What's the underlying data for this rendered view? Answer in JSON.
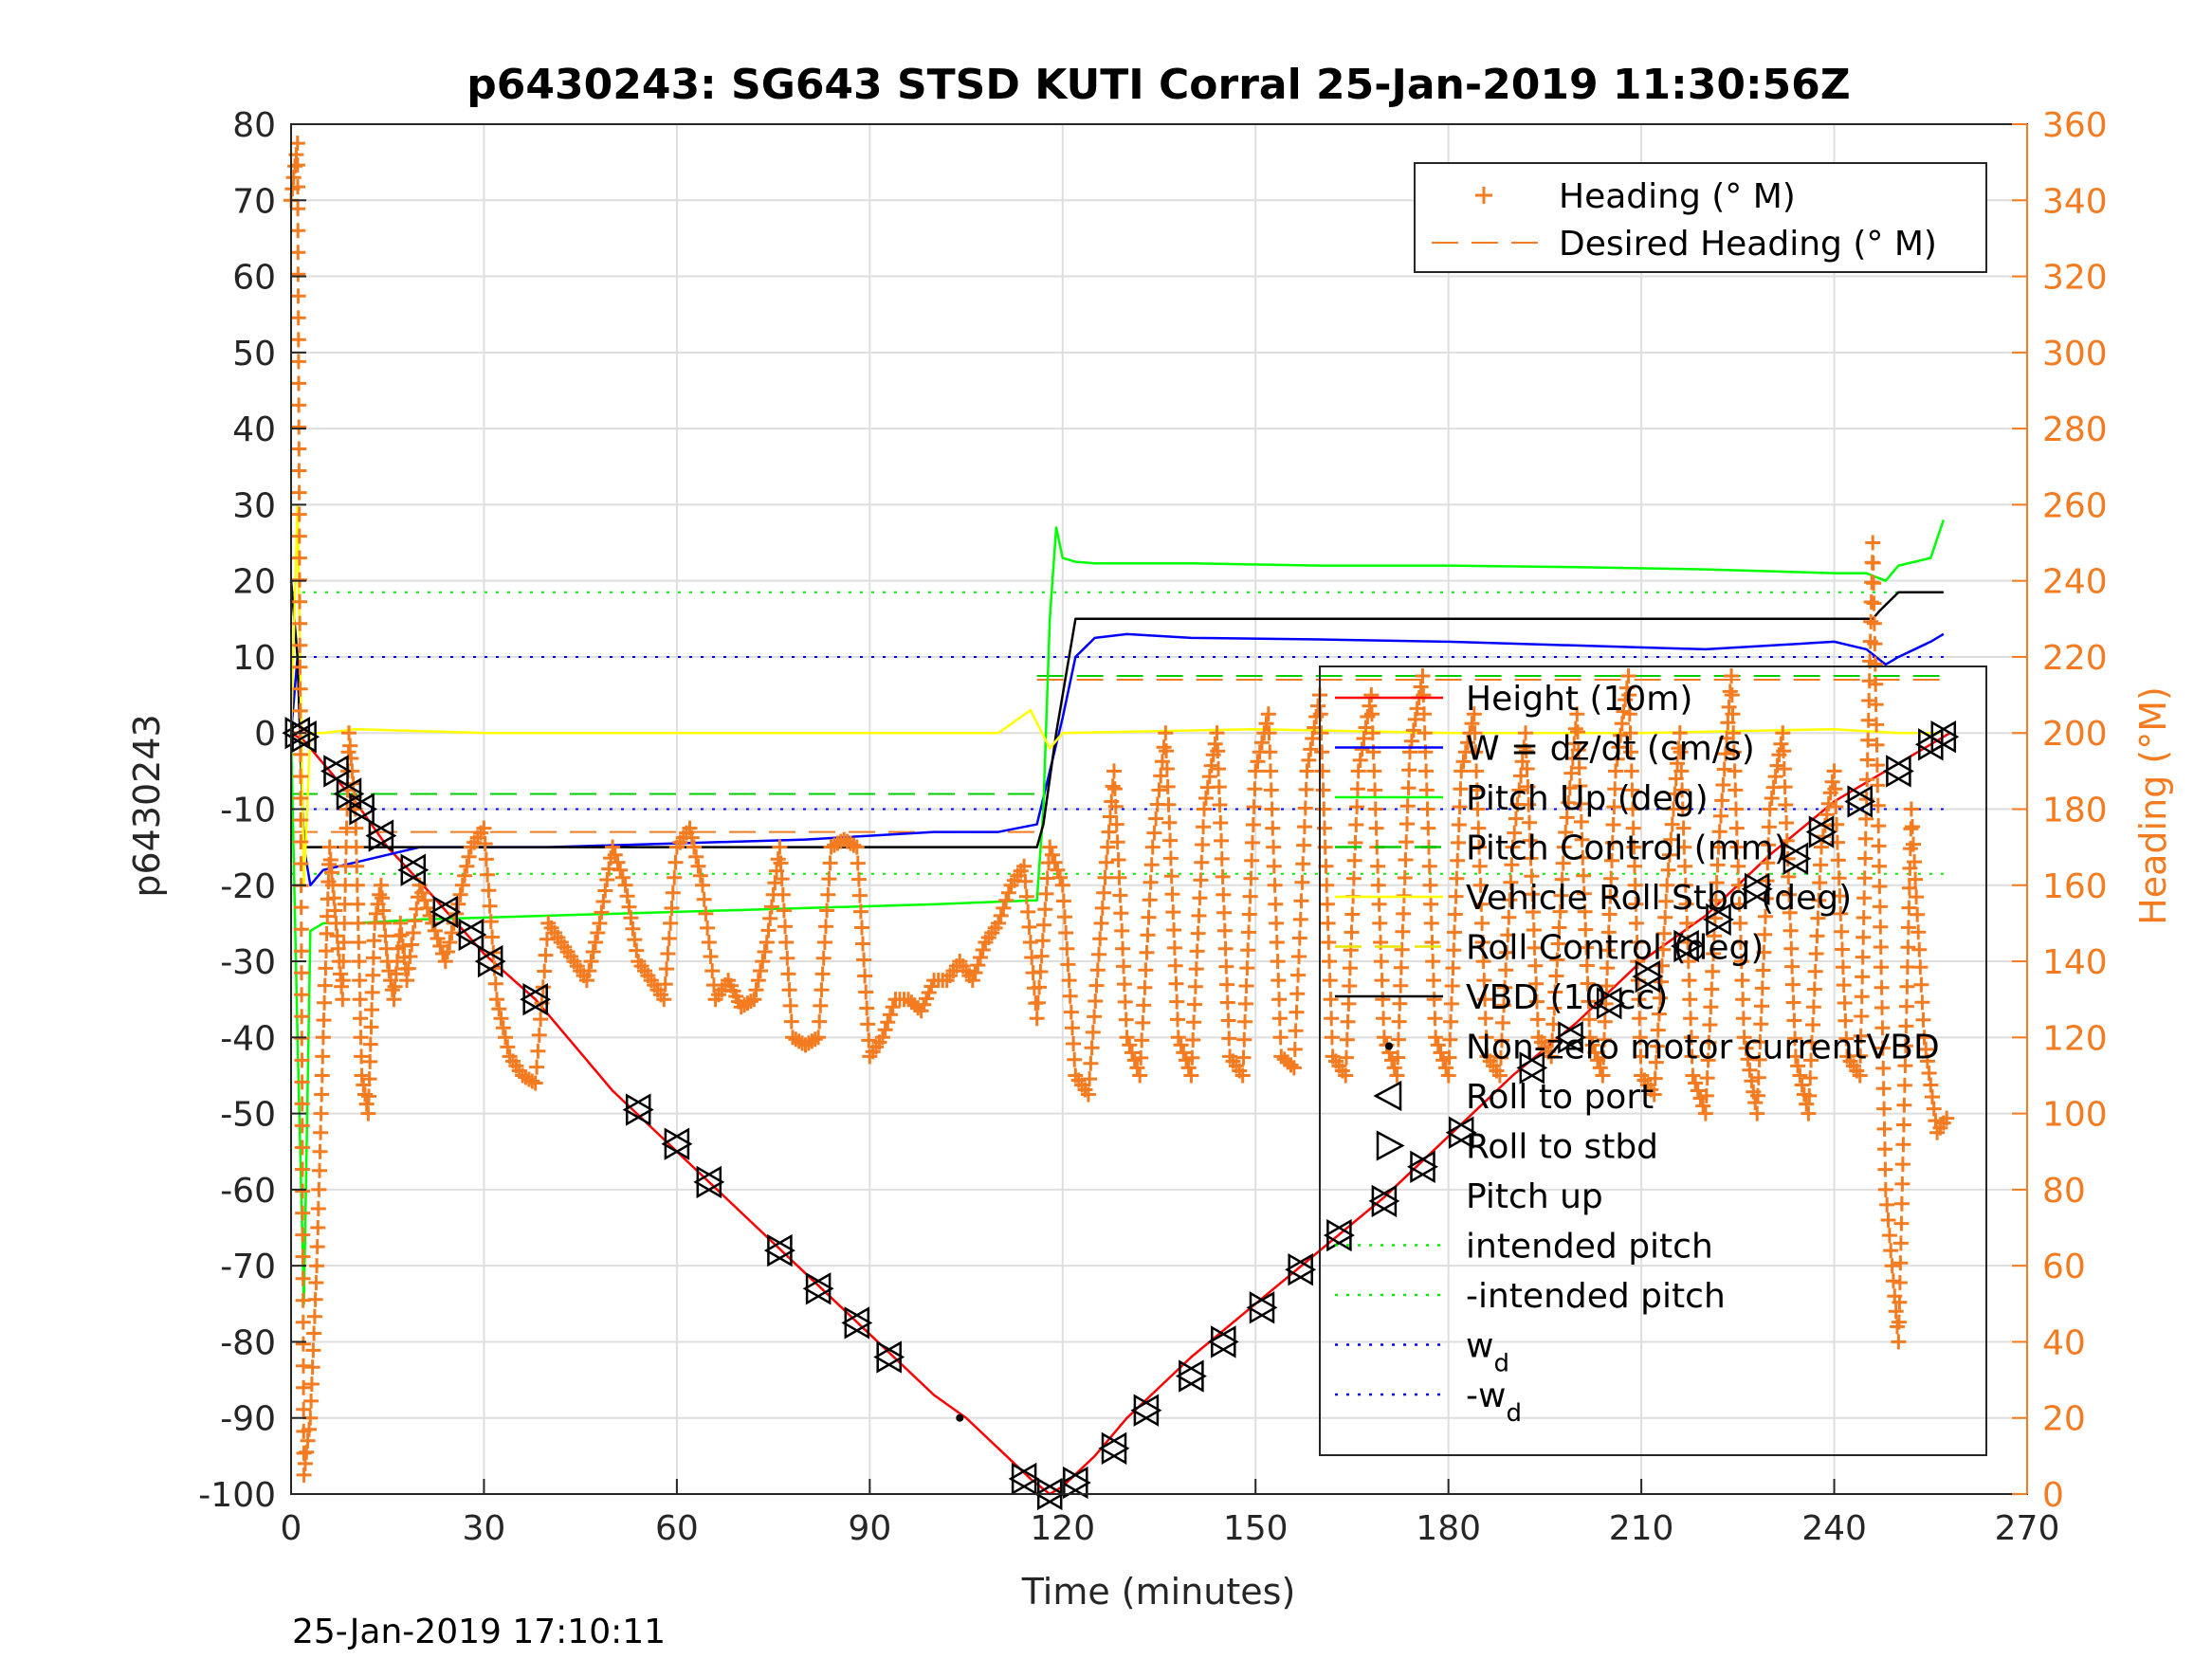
{
  "figure": {
    "title": "p6430243: SG643 STSD KUTI Corral 25-Jan-2019 11:30:56Z",
    "footer": "25-Jan-2019 17:10:11"
  },
  "chart_data": {
    "type": "line",
    "xlabel": "Time (minutes)",
    "ylabel": "p6430243",
    "ylabel_right": "Heading (°M)",
    "xlim": [
      0,
      270
    ],
    "ylim": [
      -100,
      80
    ],
    "ylim_right": [
      0,
      360
    ],
    "xticks": [
      0,
      30,
      60,
      90,
      120,
      150,
      180,
      210,
      240,
      270
    ],
    "yticks": [
      -100,
      -90,
      -80,
      -70,
      -60,
      -50,
      -40,
      -30,
      -20,
      -10,
      0,
      10,
      20,
      30,
      40,
      50,
      60,
      70,
      80
    ],
    "yticks_right": [
      0,
      20,
      40,
      60,
      80,
      100,
      120,
      140,
      160,
      180,
      200,
      220,
      240,
      260,
      280,
      300,
      320,
      340,
      360
    ],
    "grid": true,
    "legend_top": [
      {
        "label": "Heading (° M)",
        "color": "#f47b20",
        "style": "plus"
      },
      {
        "label": "Desired Heading (° M)",
        "color": "#f47b20",
        "style": "dashed"
      }
    ],
    "legend_main": [
      {
        "label": "Height (10m)",
        "color": "#ff0000",
        "style": "solid"
      },
      {
        "label": "W = dz/dt (cm/s)",
        "color": "#0000ff",
        "style": "solid"
      },
      {
        "label": "Pitch Up (deg)",
        "color": "#00ff00",
        "style": "solid"
      },
      {
        "label": "Pitch Control (mm)",
        "color": "#00cc00",
        "style": "dashed"
      },
      {
        "label": "Vehicle Roll Stbd (deg)",
        "color": "#ffff00",
        "style": "solid"
      },
      {
        "label": "Roll Control (deg)",
        "color": "#e6e600",
        "style": "dashed"
      },
      {
        "label": "VBD (10 cc)",
        "color": "#000000",
        "style": "solid"
      },
      {
        "label": "Non-zero motor currentVBD",
        "color": "#000000",
        "style": "dot"
      },
      {
        "label": "Roll to port",
        "color": "#000000",
        "style": "tri-left"
      },
      {
        "label": "Roll to stbd",
        "color": "#000000",
        "style": "tri-right"
      },
      {
        "label": "Pitch up",
        "color": "#000000",
        "style": "none"
      },
      {
        "label": "intended pitch",
        "color": "#00ee00",
        "style": "dotted"
      },
      {
        "label": "-intended pitch",
        "color": "#00ee00",
        "style": "dotted"
      },
      {
        "label": "w",
        "sub": "d",
        "color": "#0000ff",
        "style": "dotted"
      },
      {
        "label": "-w",
        "sub": "d",
        "color": "#0000ff",
        "style": "dotted"
      }
    ],
    "series": [
      {
        "name": "Height (10m)",
        "color": "#ff0000",
        "x": [
          0,
          2,
          5,
          10,
          15,
          20,
          30,
          38,
          50,
          60,
          70,
          80,
          90,
          100,
          105,
          110,
          115,
          118,
          120,
          125,
          130,
          140,
          150,
          160,
          170,
          180,
          190,
          200,
          210,
          220,
          230,
          240,
          250,
          258
        ],
        "y": [
          0,
          -1,
          -4,
          -9,
          -15,
          -19.5,
          -29,
          -35,
          -47,
          -55,
          -63,
          -71,
          -79,
          -87,
          -90,
          -94,
          -98,
          -100,
          -99,
          -95,
          -90,
          -82,
          -75,
          -68,
          -61,
          -53,
          -45,
          -38,
          -30,
          -24,
          -16,
          -9,
          -4,
          0
        ]
      },
      {
        "name": "W = dz/dt (cm/s)",
        "color": "#0000ff",
        "x": [
          0,
          1,
          2,
          3,
          5,
          10,
          15,
          20,
          30,
          40,
          60,
          80,
          100,
          110,
          116,
          118,
          120,
          121,
          122,
          125,
          130,
          140,
          160,
          180,
          200,
          220,
          240,
          245,
          248,
          250,
          255,
          257
        ],
        "y": [
          0,
          10,
          -15,
          -20,
          -18,
          -17,
          -16,
          -15,
          -15,
          -15,
          -14.5,
          -14,
          -13,
          -13,
          -12,
          -5,
          2,
          6,
          10,
          12.5,
          13,
          12.5,
          12.3,
          12,
          11.5,
          11,
          12,
          11,
          9,
          10,
          12,
          13
        ]
      },
      {
        "name": "Pitch Up (deg)",
        "color": "#00ff00",
        "x": [
          0,
          1,
          2,
          3,
          5,
          10,
          20,
          40,
          60,
          80,
          100,
          115,
          116,
          117,
          118,
          119,
          120,
          122,
          125,
          140,
          160,
          180,
          200,
          220,
          240,
          245,
          248,
          250,
          255,
          257
        ],
        "y": [
          0,
          -40,
          -75,
          -26,
          -25,
          -25,
          -24.5,
          -24,
          -23.5,
          -23,
          -22.5,
          -22,
          -22,
          -10,
          15,
          27,
          23,
          22.5,
          22.3,
          22.3,
          22,
          22,
          21.8,
          21.5,
          21,
          21,
          20,
          22,
          23,
          28
        ]
      },
      {
        "name": "VBD (10 cc)",
        "color": "#000000",
        "x": [
          0,
          1,
          2,
          5,
          20,
          40,
          60,
          80,
          100,
          110,
          116,
          117,
          118,
          119,
          120,
          121,
          122,
          125,
          140,
          160,
          180,
          200,
          220,
          240,
          246,
          247,
          250,
          257
        ],
        "y": [
          20,
          10,
          -15,
          -15,
          -15,
          -15,
          -15,
          -15,
          -15,
          -15,
          -15,
          -12,
          -6,
          0,
          5,
          10,
          15,
          15,
          15,
          15,
          15,
          15,
          15,
          15,
          15,
          16,
          18.5,
          18.5
        ]
      },
      {
        "name": "Vehicle Roll Stbd (deg)",
        "color": "#ffff00",
        "x": [
          0,
          1,
          2,
          3,
          5,
          10,
          30,
          60,
          90,
          110,
          115,
          118,
          120,
          150,
          180,
          210,
          240,
          250,
          257
        ],
        "y": [
          0,
          30,
          -20,
          0,
          0,
          0.5,
          0,
          0,
          0,
          0,
          3,
          -2,
          0,
          0.5,
          0,
          0,
          0.5,
          0,
          0
        ]
      }
    ],
    "heading_desired": [
      {
        "x": [
          0,
          5,
          10,
          15,
          20,
          30,
          50,
          70,
          90,
          110,
          116
        ],
        "y": [
          174,
          174,
          174,
          174,
          174,
          174,
          174,
          174,
          174,
          174,
          174
        ]
      },
      {
        "x": [
          116,
          120,
          150,
          180,
          210,
          240,
          257
        ],
        "y": [
          214,
          214,
          214,
          214,
          214,
          214,
          214
        ]
      }
    ],
    "reference_lines": [
      {
        "name": "intended pitch",
        "y": 18.5,
        "color": "#00ee00",
        "x": [
          0,
          257
        ]
      },
      {
        "name": "-intended pitch",
        "y": -18.5,
        "color": "#00ee00",
        "x": [
          0,
          257
        ]
      },
      {
        "name": "w_d",
        "y": 10,
        "color": "#0000ff",
        "x": [
          0,
          257
        ]
      },
      {
        "name": "-w_d",
        "y": -10,
        "color": "#0000ff",
        "x": [
          0,
          257
        ]
      },
      {
        "name": "Pitch Control (mm)",
        "y": -8,
        "color": "#00cc00",
        "x": [
          0,
          116
        ]
      },
      {
        "name": "Pitch Control (mm) dive",
        "y": 7.5,
        "color": "#00cc00",
        "x": [
          116,
          257
        ]
      }
    ],
    "heading": {
      "x": [
        0,
        1,
        2,
        3,
        4,
        5,
        6,
        7,
        8,
        9,
        10,
        11,
        12,
        13,
        14,
        15,
        16,
        17,
        18,
        20,
        22,
        24,
        26,
        28,
        30,
        32,
        34,
        36,
        38,
        40,
        42,
        44,
        46,
        48,
        50,
        52,
        54,
        56,
        58,
        60,
        62,
        64,
        66,
        68,
        70,
        72,
        74,
        76,
        78,
        80,
        82,
        84,
        86,
        88,
        90,
        92,
        94,
        96,
        98,
        100,
        102,
        104,
        106,
        108,
        110,
        112,
        114,
        116,
        118,
        120,
        122,
        124,
        126,
        128,
        130,
        132,
        134,
        136,
        138,
        140,
        142,
        144,
        146,
        148,
        150,
        152,
        154,
        156,
        158,
        160,
        162,
        164,
        166,
        168,
        170,
        172,
        174,
        176,
        178,
        180,
        182,
        184,
        186,
        188,
        190,
        192,
        194,
        196,
        198,
        200,
        202,
        204,
        206,
        208,
        210,
        212,
        214,
        216,
        218,
        220,
        222,
        224,
        226,
        228,
        230,
        232,
        234,
        236,
        238,
        240,
        242,
        244,
        246,
        248,
        250,
        252,
        254,
        256,
        258
      ],
      "y": [
        340,
        355,
        5,
        20,
        60,
        120,
        170,
        150,
        130,
        200,
        180,
        110,
        100,
        150,
        160,
        140,
        130,
        150,
        135,
        160,
        150,
        140,
        155,
        170,
        175,
        130,
        115,
        110,
        108,
        150,
        145,
        140,
        135,
        150,
        170,
        160,
        140,
        135,
        130,
        170,
        175,
        160,
        130,
        135,
        128,
        130,
        145,
        170,
        120,
        118,
        120,
        170,
        172,
        170,
        115,
        120,
        130,
        130,
        127,
        135,
        135,
        140,
        135,
        145,
        150,
        160,
        165,
        125,
        170,
        160,
        110,
        105,
        150,
        190,
        120,
        110,
        170,
        200,
        120,
        110,
        180,
        200,
        115,
        110,
        190,
        205,
        115,
        112,
        190,
        210,
        115,
        110,
        190,
        210,
        120,
        110,
        195,
        215,
        120,
        110,
        190,
        205,
        115,
        110,
        170,
        200,
        120,
        115,
        170,
        205,
        120,
        110,
        190,
        215,
        110,
        105,
        160,
        200,
        110,
        100,
        170,
        215,
        120,
        100,
        180,
        200,
        115,
        100,
        170,
        190,
        115,
        110,
        250,
        80,
        40,
        180,
        120,
        95,
        100
      ]
    },
    "markers": [
      {
        "x": 1,
        "y": 0
      },
      {
        "x": 2,
        "y": -0.5
      },
      {
        "x": 7,
        "y": -5
      },
      {
        "x": 9,
        "y": -8
      },
      {
        "x": 11,
        "y": -10
      },
      {
        "x": 14,
        "y": -13.5
      },
      {
        "x": 19,
        "y": -18
      },
      {
        "x": 24,
        "y": -23.5
      },
      {
        "x": 28,
        "y": -26.5
      },
      {
        "x": 31,
        "y": -30
      },
      {
        "x": 38,
        "y": -35
      },
      {
        "x": 54,
        "y": -49.5
      },
      {
        "x": 60,
        "y": -54
      },
      {
        "x": 65,
        "y": -59
      },
      {
        "x": 76,
        "y": -68
      },
      {
        "x": 82,
        "y": -73
      },
      {
        "x": 88,
        "y": -77.5
      },
      {
        "x": 93,
        "y": -82
      },
      {
        "x": 114,
        "y": -98
      },
      {
        "x": 118,
        "y": -100
      },
      {
        "x": 122,
        "y": -98.5
      },
      {
        "x": 128,
        "y": -94
      },
      {
        "x": 133,
        "y": -89
      },
      {
        "x": 140,
        "y": -84.5
      },
      {
        "x": 145,
        "y": -80
      },
      {
        "x": 151,
        "y": -75.5
      },
      {
        "x": 157,
        "y": -70.5
      },
      {
        "x": 163,
        "y": -66
      },
      {
        "x": 170,
        "y": -61.5
      },
      {
        "x": 176,
        "y": -57
      },
      {
        "x": 182,
        "y": -52.5
      },
      {
        "x": 193,
        "y": -44
      },
      {
        "x": 199,
        "y": -40
      },
      {
        "x": 205,
        "y": -35.5
      },
      {
        "x": 211,
        "y": -32
      },
      {
        "x": 217,
        "y": -28
      },
      {
        "x": 222,
        "y": -24.5
      },
      {
        "x": 228,
        "y": -20.5
      },
      {
        "x": 234,
        "y": -16.5
      },
      {
        "x": 238,
        "y": -13
      },
      {
        "x": 244,
        "y": -9
      },
      {
        "x": 250,
        "y": -5
      },
      {
        "x": 255,
        "y": -1.5
      },
      {
        "x": 257,
        "y": -0.5
      }
    ],
    "vbd_dots": [
      {
        "x": 104,
        "y": -90
      }
    ]
  }
}
